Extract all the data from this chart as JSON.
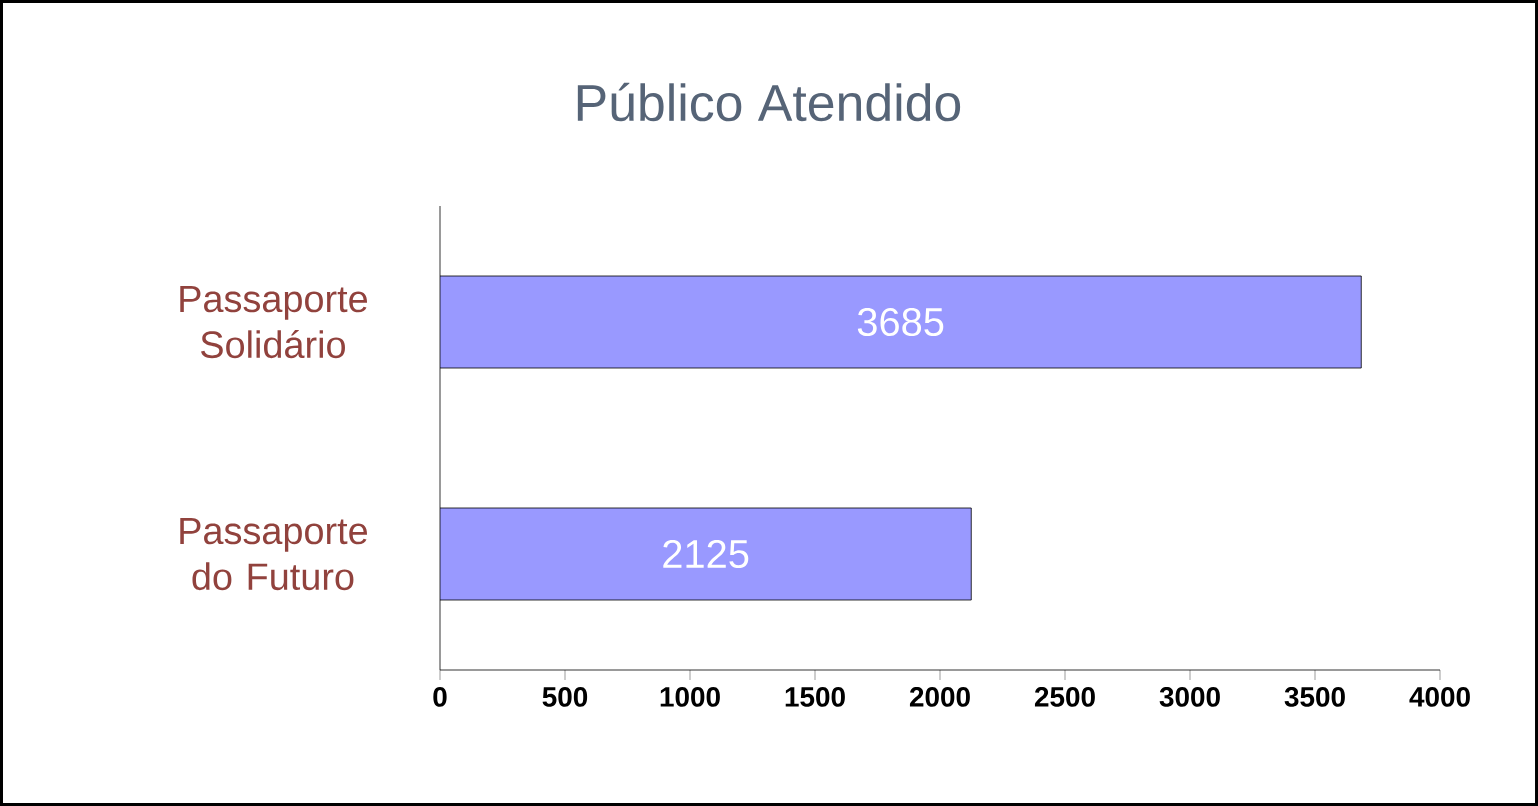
{
  "chart_data": {
    "type": "bar",
    "orientation": "horizontal",
    "title": "Público Atendido",
    "categories": [
      "Passaporte Solidário",
      "Passaporte do Futuro"
    ],
    "values": [
      3685,
      2125
    ],
    "color": "#9999ff",
    "data_labels": true,
    "xlim": [
      0,
      4000
    ],
    "xticks": [
      0,
      500,
      1000,
      1500,
      2000,
      2500,
      3000,
      3500,
      4000
    ]
  }
}
